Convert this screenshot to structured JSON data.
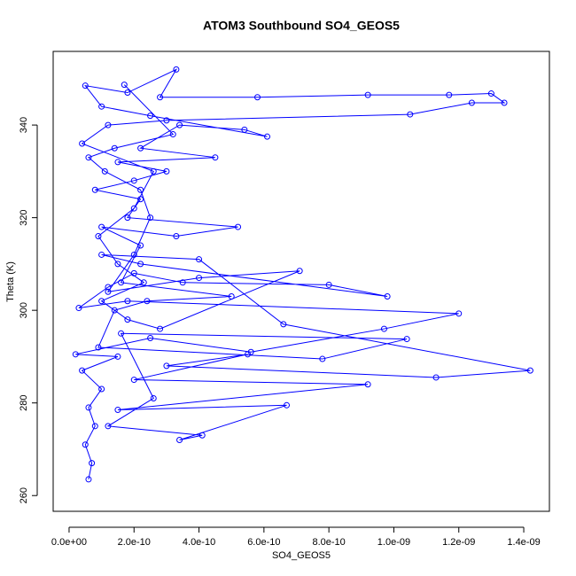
{
  "chart_data": {
    "type": "line",
    "title": "ATOM3 Southbound SO4_GEOS5",
    "x_label": "SO4_GEOS5",
    "y_label": "Theta (K)",
    "color": "#0000ff",
    "markers": true,
    "grid": false,
    "x": [
      6e-11,
      7e-11,
      5e-11,
      8e-11,
      6e-11,
      1e-10,
      4e-11,
      1.5e-10,
      2e-11,
      2.5e-10,
      5.6e-10,
      9.7e-10,
      1.2e-09,
      1.8e-10,
      3e-11,
      1.2e-10,
      2e-10,
      3.5e-10,
      8e-10,
      9.8e-10,
      2.2e-10,
      1e-10,
      4e-10,
      6.6e-10,
      1.42e-09,
      1.13e-09,
      3e-10,
      5.5e-10,
      2e-10,
      9.2e-10,
      1.5e-10,
      6.7e-10,
      3.4e-10,
      4.1e-10,
      1.2e-10,
      2.6e-10,
      1.6e-10,
      1.04e-09,
      7.8e-10,
      9e-11,
      1.4e-10,
      2.4e-10,
      5e-10,
      1.6e-10,
      2.2e-10,
      1e-10,
      3.3e-10,
      5.2e-10,
      1.8e-10,
      2.2e-10,
      8e-11,
      2e-10,
      3e-10,
      1.5e-10,
      4.5e-10,
      2.2e-10,
      3.4e-10,
      5.4e-10,
      6.1e-10,
      2.5e-10,
      1e-10,
      5e-11,
      1.8e-10,
      3.3e-10,
      2.8e-10,
      5.8e-10,
      9.2e-10,
      1.17e-09,
      1.3e-09,
      1.34e-09,
      1.24e-09,
      1.05e-09,
      3e-10,
      1.2e-10,
      4e-11,
      2.6e-10,
      2e-10,
      9e-11,
      1.5e-10,
      2.3e-10,
      1e-10,
      1.8e-10,
      2.8e-10,
      7.1e-10,
      4e-10,
      1.2e-10,
      2e-10,
      2.5e-10,
      2.2e-10,
      1.1e-10,
      6e-11,
      1.4e-10,
      3.2e-10,
      1.7e-10
    ],
    "values": [
      263.5,
      267,
      271,
      275,
      279,
      283,
      287,
      290,
      290.5,
      294,
      291,
      296,
      299.3,
      302,
      300.5,
      305,
      308,
      306,
      305.5,
      303,
      310,
      312,
      311,
      297,
      287,
      285.5,
      288,
      290.5,
      285,
      284,
      278.5,
      279.5,
      272,
      273,
      275,
      281,
      295,
      293.8,
      289.5,
      292,
      300,
      302,
      303,
      306,
      314,
      318,
      316,
      318,
      320,
      324,
      326,
      328,
      330,
      332,
      333,
      335,
      340,
      339,
      337.5,
      342,
      344,
      348.5,
      347,
      352,
      346,
      346,
      346.5,
      346.5,
      346.8,
      344.8,
      344.8,
      342.3,
      341,
      340,
      336,
      330,
      322,
      316,
      310,
      306,
      302,
      298,
      296,
      308.5,
      307,
      304,
      312,
      320,
      326,
      330,
      333,
      335,
      338,
      348.7
    ],
    "xlim": [
      -4.9e-11,
      1.479e-09
    ],
    "ylim": [
      256.6,
      355.9
    ],
    "xticks": [
      {
        "value": 0,
        "label": "0.0e+00"
      },
      {
        "value": 2e-10,
        "label": "2.0e-10"
      },
      {
        "value": 4e-10,
        "label": "4.0e-10"
      },
      {
        "value": 6e-10,
        "label": "6.0e-10"
      },
      {
        "value": 8e-10,
        "label": "8.0e-10"
      },
      {
        "value": 1e-09,
        "label": "1.0e-09"
      },
      {
        "value": 1.2e-09,
        "label": "1.2e-09"
      },
      {
        "value": 1.4e-09,
        "label": "1.4e-09"
      }
    ],
    "yticks": [
      260,
      280,
      300,
      320,
      340
    ]
  }
}
